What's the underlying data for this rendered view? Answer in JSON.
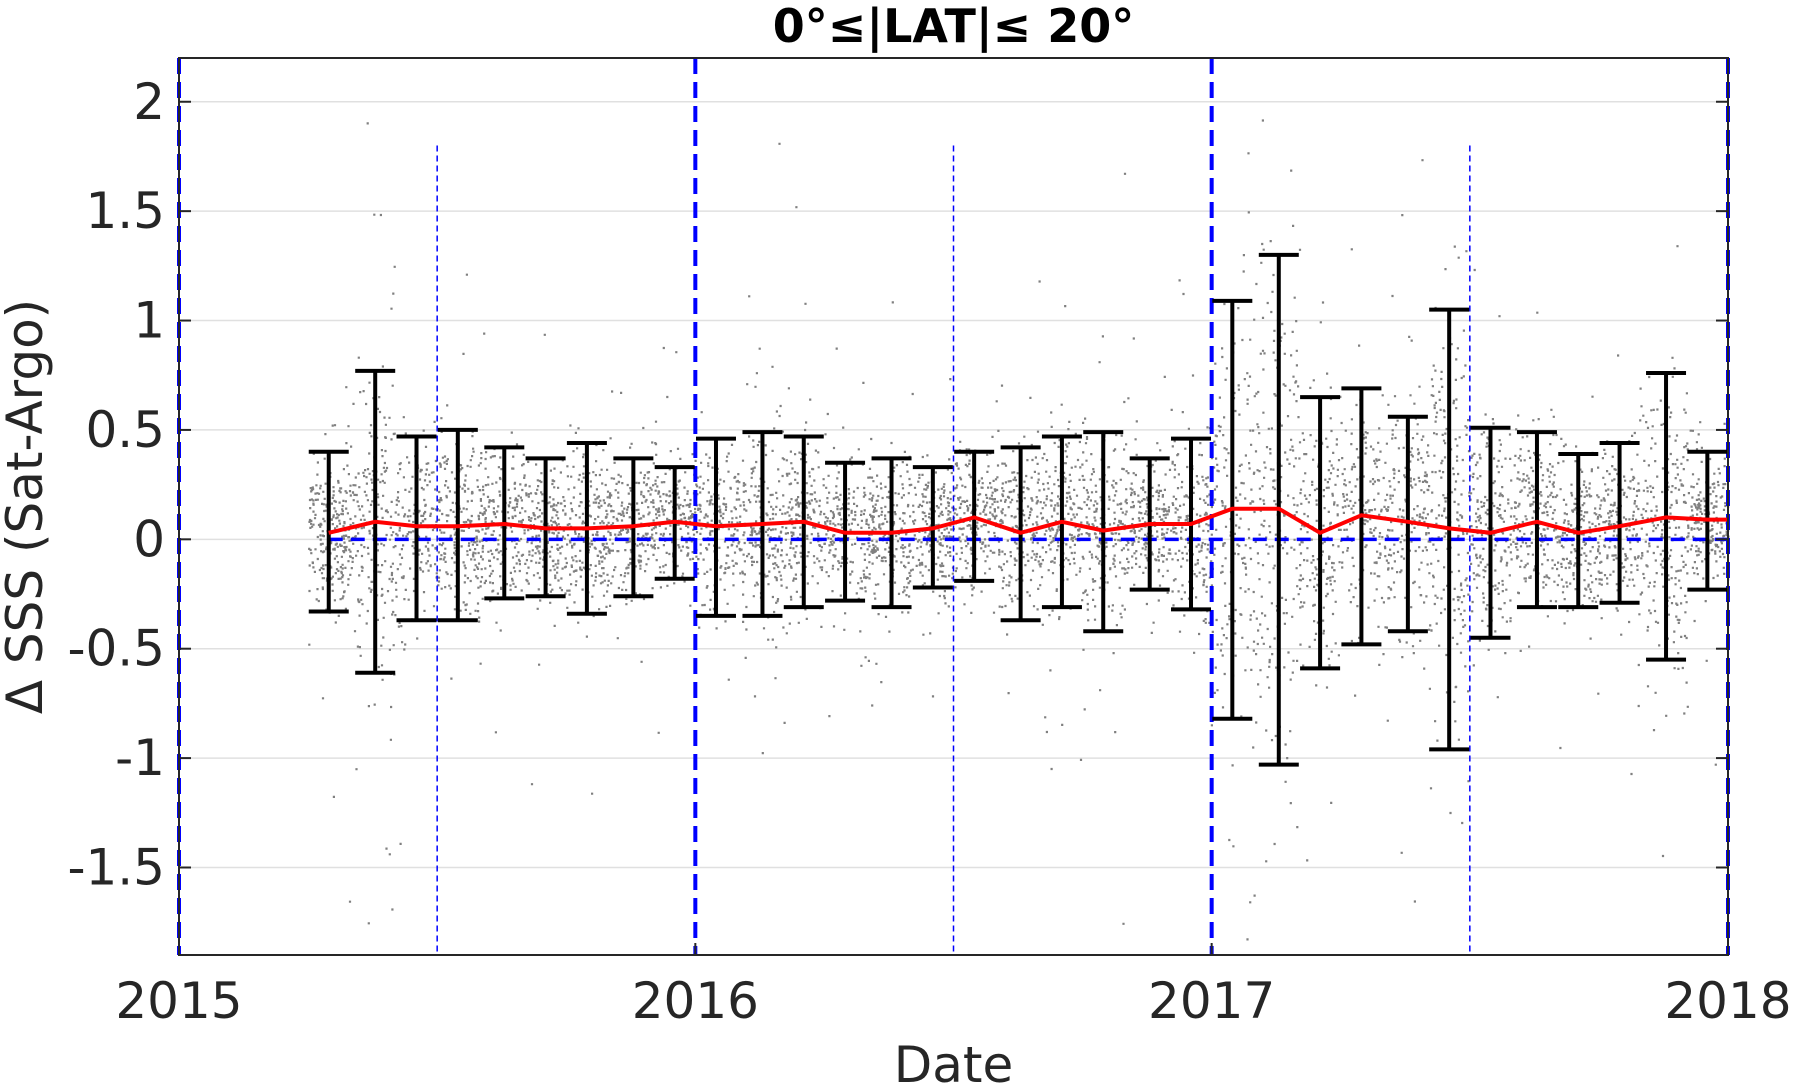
{
  "chart_data": {
    "type": "scatter",
    "title": "0°≤|LAT|≤ 20°",
    "xlabel": "Date",
    "ylabel": "Δ SSS (Sat-Argo)",
    "xlim": [
      2015.0,
      2018.0
    ],
    "ylim": [
      -1.9,
      2.2
    ],
    "x_ticks": [
      2015,
      2016,
      2017,
      2018
    ],
    "x_tick_labels": [
      "2015",
      "2016",
      "2017",
      "2018"
    ],
    "y_ticks": [
      2,
      1.5,
      1,
      0.5,
      0,
      -0.5,
      -1,
      -1.5
    ],
    "y_tick_labels": [
      "2",
      "1.5",
      "1",
      "0.5",
      "0",
      "-0.5",
      "-1",
      "-1.5"
    ],
    "grid": "horizontal",
    "reference_line_y": 0,
    "year_boundary_lines": [
      2015.0,
      2016.0,
      2017.0,
      2018.0
    ],
    "mid_year_lines": [
      2015.5,
      2016.5,
      2017.5
    ],
    "colors": {
      "scatter": "#808080",
      "mean_line": "#ff0000",
      "error_bars": "#000000",
      "reference_lines": "#0000ff",
      "grid": "#e0e0e0",
      "axes": "#262626"
    },
    "scatter": {
      "x_range": [
        2015.25,
        2018.0
      ],
      "spread_note_center": 0.05,
      "spread_sigma": 0.2
    },
    "monthly_stats": {
      "x": [
        2015.29,
        2015.38,
        2015.46,
        2015.54,
        2015.63,
        2015.71,
        2015.79,
        2015.88,
        2015.96,
        2016.04,
        2016.13,
        2016.21,
        2016.29,
        2016.38,
        2016.46,
        2016.54,
        2016.63,
        2016.71,
        2016.79,
        2016.88,
        2016.96,
        2017.04,
        2017.13,
        2017.21,
        2017.29,
        2017.38,
        2017.46,
        2017.54,
        2017.63,
        2017.71,
        2017.79,
        2017.88,
        2017.96
      ],
      "mean": [
        0.03,
        0.08,
        0.06,
        0.06,
        0.07,
        0.05,
        0.05,
        0.06,
        0.08,
        0.06,
        0.07,
        0.08,
        0.03,
        0.03,
        0.05,
        0.1,
        0.03,
        0.08,
        0.04,
        0.07,
        0.07,
        0.14,
        0.14,
        0.03,
        0.11,
        0.08,
        0.05,
        0.03,
        0.08,
        0.03,
        0.06,
        0.1,
        0.09
      ],
      "upper": [
        0.4,
        0.77,
        0.47,
        0.5,
        0.42,
        0.37,
        0.44,
        0.37,
        0.33,
        0.46,
        0.49,
        0.47,
        0.35,
        0.37,
        0.33,
        0.4,
        0.42,
        0.47,
        0.49,
        0.37,
        0.46,
        1.09,
        1.3,
        0.65,
        0.69,
        0.56,
        1.05,
        0.51,
        0.49,
        0.39,
        0.44,
        0.76,
        0.4
      ],
      "lower": [
        -0.33,
        -0.61,
        -0.37,
        -0.37,
        -0.27,
        -0.26,
        -0.34,
        -0.26,
        -0.18,
        -0.35,
        -0.35,
        -0.31,
        -0.28,
        -0.31,
        -0.22,
        -0.19,
        -0.37,
        -0.31,
        -0.42,
        -0.23,
        -0.32,
        -0.82,
        -1.03,
        -0.59,
        -0.48,
        -0.42,
        -0.96,
        -0.45,
        -0.31,
        -0.31,
        -0.29,
        -0.55,
        -0.23
      ]
    }
  }
}
